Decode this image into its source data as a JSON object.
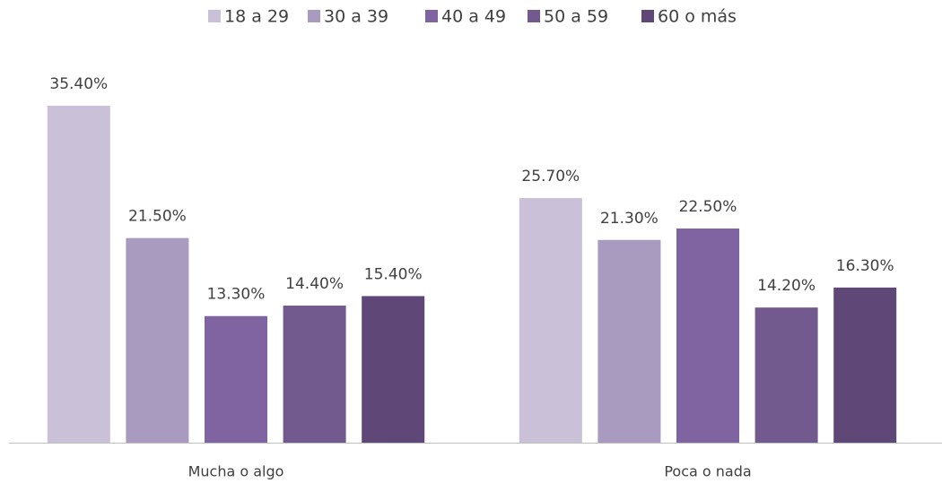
{
  "chart_data": {
    "type": "bar",
    "categories": [
      "Mucha o algo",
      "Poca o nada"
    ],
    "series": [
      {
        "name": "18 a 29",
        "color": "#cac1d8",
        "values": [
          35.4,
          25.7
        ],
        "value_labels": [
          "35.40%",
          "25.70%"
        ]
      },
      {
        "name": "30 a 39",
        "color": "#a99abf",
        "values": [
          21.5,
          21.3
        ],
        "value_labels": [
          "21.50%",
          "21.30%"
        ]
      },
      {
        "name": "40 a 49",
        "color": "#8064a2",
        "values": [
          13.3,
          22.5
        ],
        "value_labels": [
          "13.30%",
          "22.50%"
        ]
      },
      {
        "name": "50 a 59",
        "color": "#72598e",
        "values": [
          14.4,
          14.2
        ],
        "value_labels": [
          "14.40%",
          "14.20%"
        ]
      },
      {
        "name": "60 o más",
        "color": "#5f4878",
        "values": [
          15.4,
          16.3
        ],
        "value_labels": [
          "15.40%",
          "16.30%"
        ]
      }
    ],
    "legend": "top"
  }
}
